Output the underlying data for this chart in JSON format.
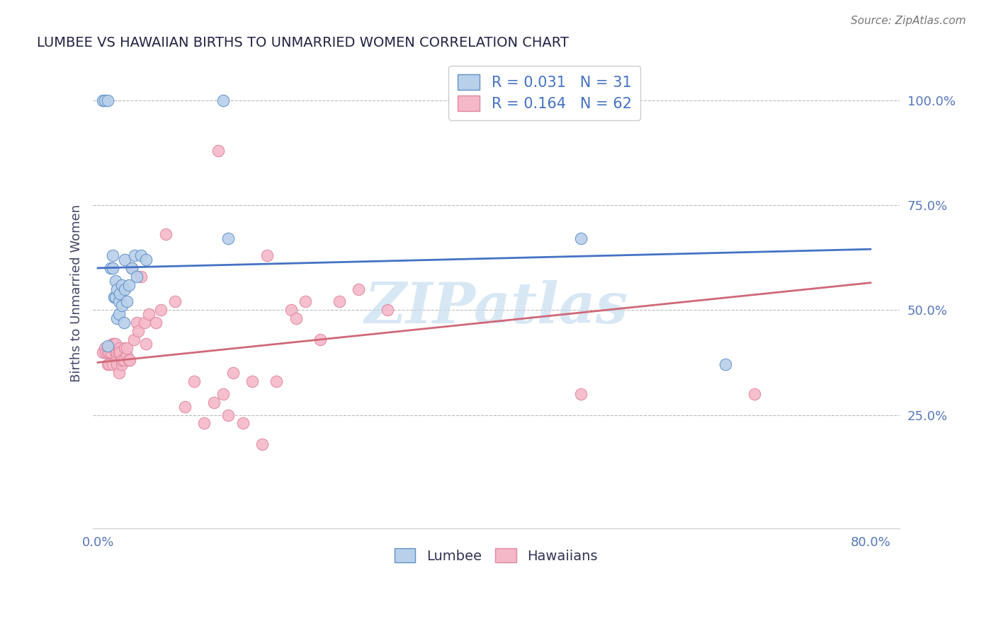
{
  "title": "LUMBEE VS HAWAIIAN BIRTHS TO UNMARRIED WOMEN CORRELATION CHART",
  "source": "Source: ZipAtlas.com",
  "ylabel": "Births to Unmarried Women",
  "xlim": [
    -0.005,
    0.83
  ],
  "ylim": [
    -0.02,
    1.1
  ],
  "yticks": [
    0.25,
    0.5,
    0.75,
    1.0
  ],
  "ytick_labels": [
    "25.0%",
    "50.0%",
    "75.0%",
    "100.0%"
  ],
  "xtick_vals": [
    0.0,
    0.8
  ],
  "xtick_labels": [
    "0.0%",
    "80.0%"
  ],
  "legend_blue_R": "R = 0.031",
  "legend_blue_N": "N = 31",
  "legend_pink_R": "R = 0.164",
  "legend_pink_N": "N = 62",
  "blue_scatter_color": "#b8d0ea",
  "blue_edge_color": "#6090c8",
  "pink_scatter_color": "#f5b8c8",
  "pink_edge_color": "#e088a0",
  "blue_line_color": "#4472c4",
  "pink_line_color": "#d06878",
  "watermark": "ZIPatlas",
  "watermark_color": "#c8ddf0",
  "lumbee_x": [
    0.005,
    0.007,
    0.01,
    0.01,
    0.013,
    0.015,
    0.015,
    0.017,
    0.018,
    0.018,
    0.02,
    0.02,
    0.022,
    0.022,
    0.023,
    0.025,
    0.025,
    0.027,
    0.028,
    0.028,
    0.03,
    0.032,
    0.035,
    0.038,
    0.04,
    0.045,
    0.05,
    0.13,
    0.135,
    0.5,
    0.65
  ],
  "lumbee_y": [
    1.0,
    1.0,
    1.0,
    0.415,
    0.6,
    0.63,
    0.6,
    0.53,
    0.57,
    0.53,
    0.48,
    0.55,
    0.52,
    0.49,
    0.54,
    0.51,
    0.56,
    0.47,
    0.62,
    0.55,
    0.52,
    0.56,
    0.6,
    0.63,
    0.58,
    0.63,
    0.62,
    1.0,
    0.67,
    0.67,
    0.37
  ],
  "hawaiian_x": [
    0.005,
    0.007,
    0.008,
    0.01,
    0.01,
    0.012,
    0.012,
    0.014,
    0.015,
    0.015,
    0.017,
    0.018,
    0.018,
    0.02,
    0.02,
    0.02,
    0.022,
    0.022,
    0.023,
    0.023,
    0.025,
    0.025,
    0.027,
    0.028,
    0.03,
    0.03,
    0.032,
    0.033,
    0.035,
    0.037,
    0.04,
    0.042,
    0.045,
    0.048,
    0.05,
    0.053,
    0.06,
    0.065,
    0.07,
    0.08,
    0.09,
    0.1,
    0.11,
    0.12,
    0.125,
    0.13,
    0.135,
    0.14,
    0.15,
    0.16,
    0.17,
    0.175,
    0.185,
    0.2,
    0.205,
    0.215,
    0.23,
    0.25,
    0.27,
    0.3,
    0.5,
    0.68
  ],
  "hawaiian_y": [
    0.4,
    0.41,
    0.4,
    0.4,
    0.37,
    0.4,
    0.37,
    0.4,
    0.37,
    0.42,
    0.42,
    0.4,
    0.42,
    0.39,
    0.37,
    0.4,
    0.35,
    0.4,
    0.41,
    0.4,
    0.37,
    0.38,
    0.38,
    0.41,
    0.39,
    0.41,
    0.38,
    0.38,
    0.6,
    0.43,
    0.47,
    0.45,
    0.58,
    0.47,
    0.42,
    0.49,
    0.47,
    0.5,
    0.68,
    0.52,
    0.27,
    0.33,
    0.23,
    0.28,
    0.88,
    0.3,
    0.25,
    0.35,
    0.23,
    0.33,
    0.18,
    0.63,
    0.33,
    0.5,
    0.48,
    0.52,
    0.43,
    0.52,
    0.55,
    0.5,
    0.3,
    0.3
  ],
  "blue_line_x0": 0.0,
  "blue_line_y0": 0.6,
  "blue_line_x1": 0.8,
  "blue_line_y1": 0.645,
  "pink_line_x0": 0.0,
  "pink_line_y0": 0.375,
  "pink_line_x1": 0.8,
  "pink_line_y1": 0.565
}
